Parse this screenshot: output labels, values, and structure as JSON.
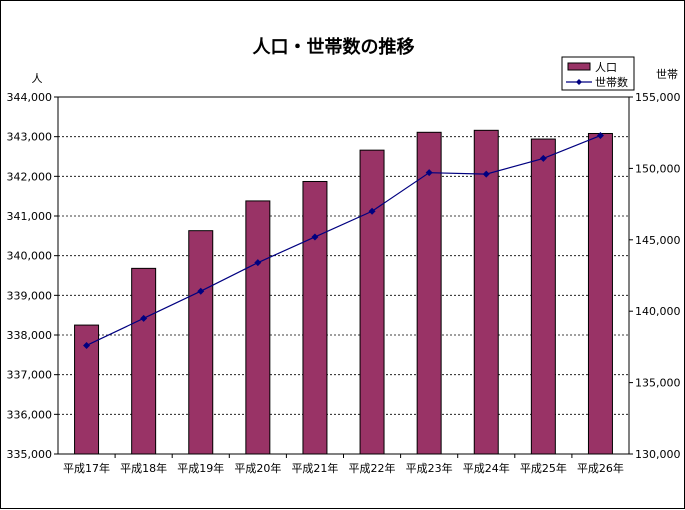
{
  "chart_data": {
    "type": "bar+line",
    "title": "人口・世帯数の推移",
    "left_axis_unit": "人",
    "right_axis_unit": "世帯",
    "categories": [
      "平成17年",
      "平成18年",
      "平成19年",
      "平成20年",
      "平成21年",
      "平成22年",
      "平成23年",
      "平成24年",
      "平成25年",
      "平成26年"
    ],
    "series": [
      {
        "name": "人口",
        "type": "bar",
        "axis": "left",
        "color": "#993366",
        "values": [
          338250,
          339680,
          340630,
          341380,
          341870,
          342660,
          343110,
          343160,
          342940,
          343080
        ]
      },
      {
        "name": "世帯数",
        "type": "line",
        "axis": "right",
        "color": "#000080",
        "values": [
          137600,
          139500,
          141400,
          143400,
          145200,
          147000,
          149700,
          149600,
          150700,
          152300
        ]
      }
    ],
    "left_ylim": [
      335000,
      344000
    ],
    "left_ticks": [
      "335,000",
      "336,000",
      "337,000",
      "338,000",
      "339,000",
      "340,000",
      "341,000",
      "342,000",
      "343,000",
      "344,000"
    ],
    "right_ylim": [
      130000,
      155000
    ],
    "right_ticks": [
      "130,000",
      "135,000",
      "140,000",
      "145,000",
      "150,000",
      "155,000"
    ],
    "grid": true,
    "legend_position": "top-right"
  }
}
